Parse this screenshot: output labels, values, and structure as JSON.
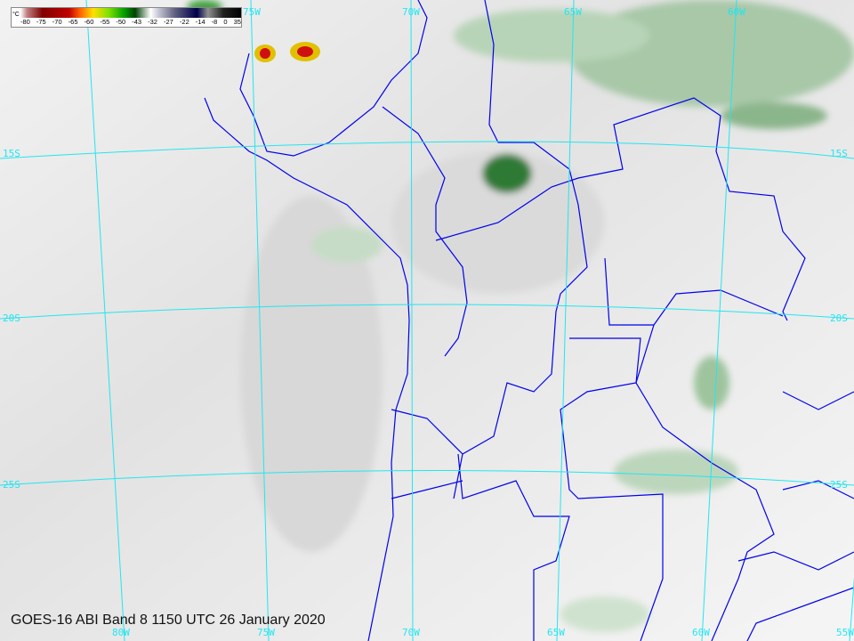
{
  "caption": "GOES-16 ABI Band 8 1150 UTC 26 January 2020",
  "colorbar": {
    "unit": "°C",
    "ticks": [
      "-80",
      "-75",
      "-70",
      "-65",
      "-60",
      "-55",
      "-50",
      "-43",
      "-32",
      "-27",
      "-22",
      "-14",
      "-8",
      "0",
      "35"
    ]
  },
  "graticule": {
    "top_labels": [
      "75W",
      "70W",
      "65W",
      "60W"
    ],
    "bottom_labels": [
      "80W",
      "75W",
      "70W",
      "65W",
      "60W",
      "55W"
    ],
    "left_labels": [
      "15S",
      "20S",
      "25S"
    ],
    "right_labels": [
      "15S",
      "20S",
      "25S"
    ]
  },
  "colors": {
    "graticule": "#22e6f0",
    "borders": "#0000ee",
    "cloud_cold": "#1e6e28"
  }
}
